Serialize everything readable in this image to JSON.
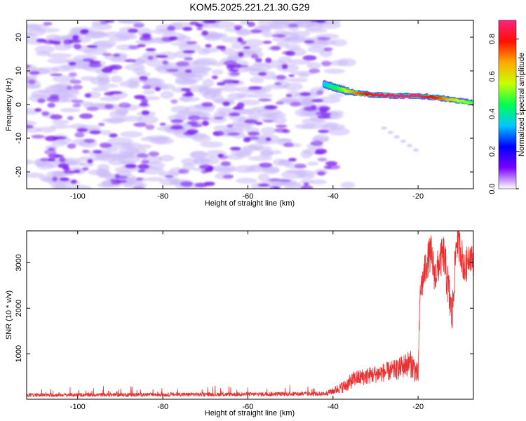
{
  "title": "KOM5.2025.221.21.30.G29",
  "colors": {
    "snr_line": "#e83030",
    "spectrogram_low": "#c8b8f8",
    "spectrogram_mid": "#7a1cf0",
    "colorbar_stops": [
      "#ffffff",
      "#7a00ff",
      "#0000ff",
      "#00c8ff",
      "#00ff50",
      "#c8ff00",
      "#ffaa00",
      "#ff1000",
      "#ff2080"
    ]
  },
  "chart_data": [
    {
      "type": "heatmap",
      "name": "spectrogram",
      "xlabel": "Height of straight line (km)",
      "ylabel": "Frequency (Hz)",
      "xlim": [
        -112,
        -7
      ],
      "ylim": [
        -25,
        25
      ],
      "xticks": [
        -100,
        -80,
        -60,
        -40,
        -20
      ],
      "yticks": [
        -20,
        -10,
        0,
        10,
        20
      ],
      "noise_region": {
        "x_range": [
          -112,
          -38
        ],
        "y_range": [
          -25,
          25
        ],
        "typical_amplitude": 0.1
      },
      "signal_track": {
        "x": [
          -42,
          -38,
          -35,
          -30,
          -25,
          -20,
          -15,
          -10,
          -7
        ],
        "freq": [
          6,
          4.5,
          3.5,
          2.8,
          2.6,
          2.6,
          2.0,
          1.0,
          0.5
        ],
        "amplitude": [
          0.35,
          0.5,
          0.7,
          0.85,
          0.9,
          0.9,
          0.75,
          0.55,
          0.5
        ]
      },
      "colorbar": {
        "label": "Normalized spectral amplitude",
        "range": [
          0,
          0.9
        ],
        "ticks": [
          "0.0",
          "0.2",
          "0.4",
          "0.6",
          "0.8"
        ]
      }
    },
    {
      "type": "line",
      "name": "snr",
      "xlabel": "Height of straight line (km)",
      "ylabel": "SNR (10 * v/v)",
      "xlim": [
        -112,
        -7
      ],
      "ylim": [
        0,
        3700
      ],
      "xticks": [
        -100,
        -80,
        -60,
        -40,
        -20
      ],
      "yticks": [
        1000,
        2000,
        3000
      ],
      "envelope": {
        "x": [
          -112,
          -60,
          -42,
          -40,
          -37,
          -35,
          -30,
          -25,
          -22,
          -21,
          -20,
          -19.5,
          -19,
          -18,
          -17,
          -16,
          -15,
          -14,
          -13,
          -12,
          -11,
          -10,
          -9,
          -8,
          -7
        ],
        "mid": [
          90,
          110,
          120,
          180,
          300,
          450,
          550,
          650,
          800,
          700,
          500,
          2400,
          2550,
          3000,
          3200,
          2700,
          3000,
          3200,
          2500,
          1800,
          3500,
          3300,
          2800,
          3200,
          3000
        ],
        "noise": [
          40,
          45,
          50,
          80,
          150,
          180,
          200,
          230,
          300,
          300,
          250,
          300,
          350,
          400,
          450,
          400,
          400,
          450,
          500,
          450,
          400,
          400,
          400,
          350,
          300
        ]
      }
    }
  ]
}
